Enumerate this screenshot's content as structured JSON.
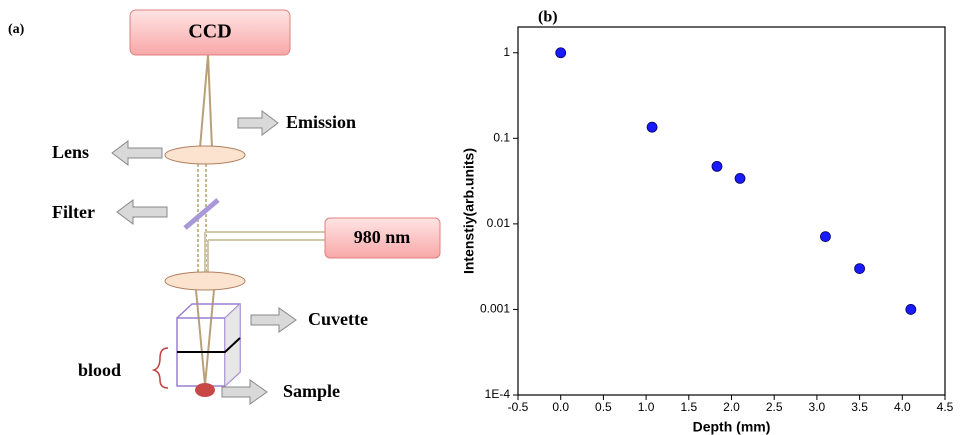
{
  "panel_a": {
    "label": "(a)",
    "ccd": "CCD",
    "emission": "Emission",
    "lens": "Lens",
    "filter": "Filter",
    "laser": "980 nm",
    "cuvette": "Cuvette",
    "blood": "blood",
    "sample": "Sample"
  },
  "chart_data": {
    "type": "scatter",
    "panel_label": "(b)",
    "x_label": "Depth (mm)",
    "y_label": "Intenstiy(arb.units)",
    "series": [
      {
        "color": "#1a1aff",
        "x": [
          0.0,
          1.07,
          1.83,
          2.1,
          3.1,
          3.5,
          4.1
        ],
        "values": [
          1,
          0.135,
          0.047,
          0.034,
          0.0071,
          0.003,
          0.001
        ]
      }
    ],
    "xlim": [
      -0.5,
      4.5
    ],
    "ylim": [
      0.0001,
      2
    ],
    "log_y": true,
    "xticks": [
      -0.5,
      {
        "value": 0,
        "label": "0.0"
      },
      0.5,
      {
        "value": 1,
        "label": "1.0"
      },
      1.5,
      {
        "value": 2,
        "label": "2.0"
      },
      2.5,
      {
        "value": 3,
        "label": "3.0"
      },
      3.5,
      {
        "value": 4,
        "label": "4.0"
      },
      4.5
    ],
    "yticks": [
      {
        "value": 0.0001,
        "label": "1E-4"
      },
      0.001,
      0.01,
      0.1,
      1
    ]
  }
}
